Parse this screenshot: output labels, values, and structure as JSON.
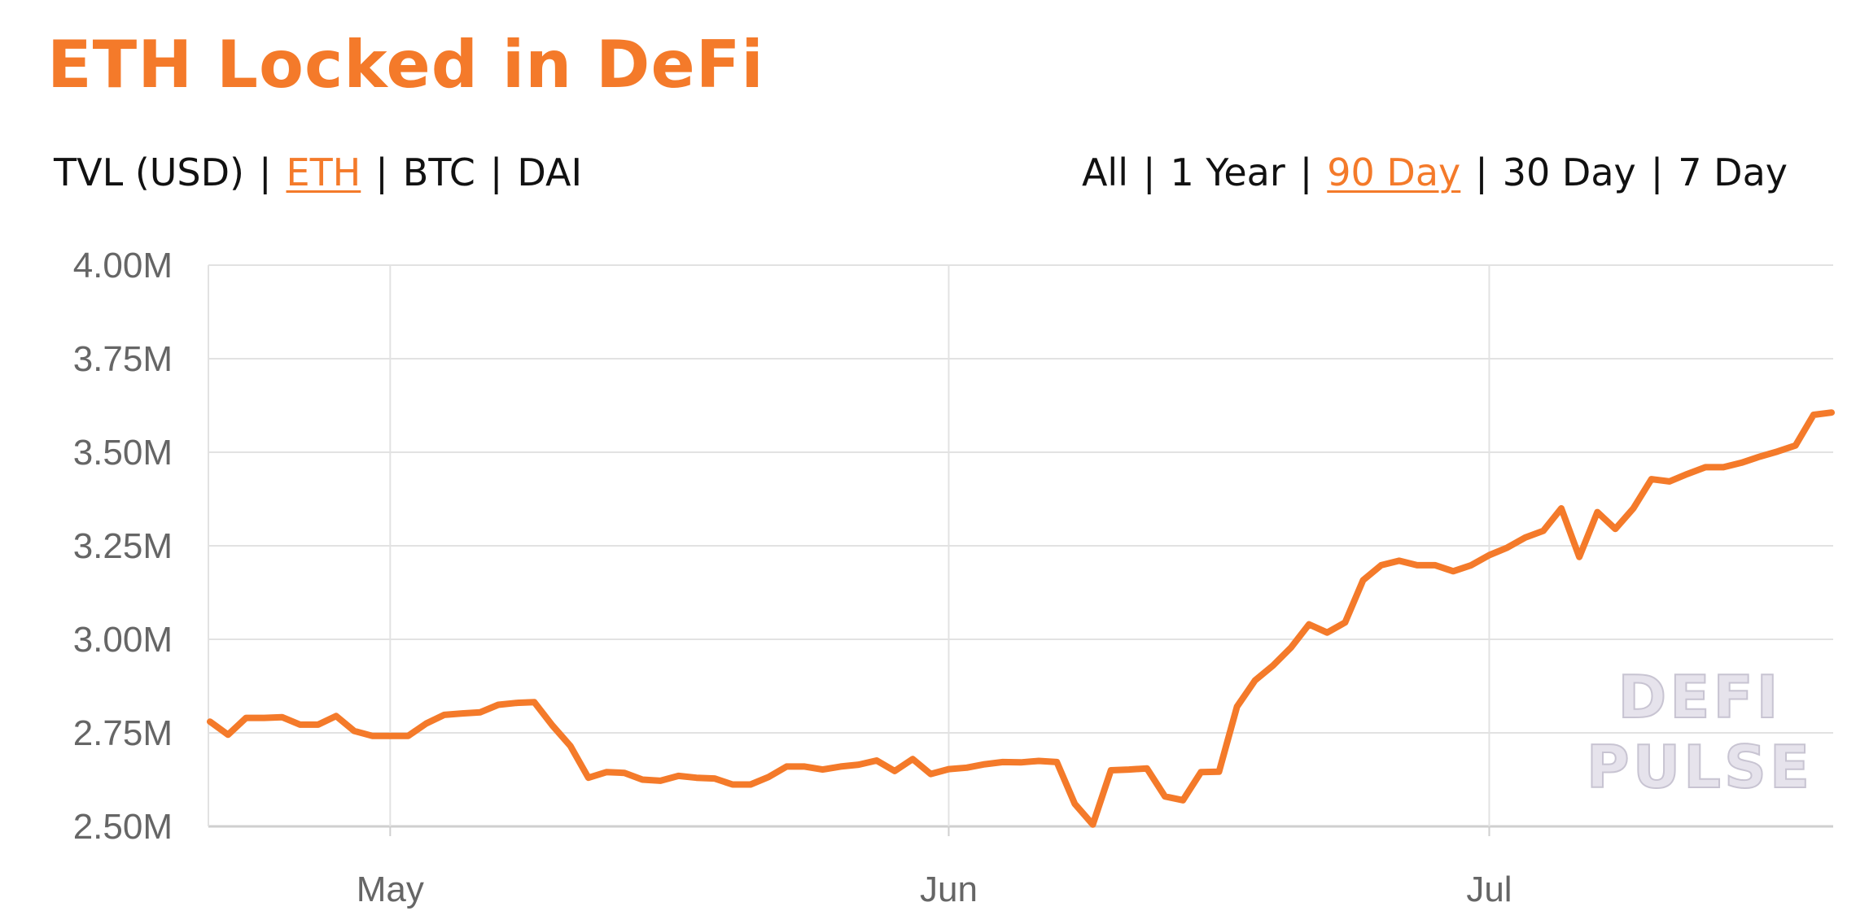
{
  "colors": {
    "accent": "#f47a2a",
    "text": "#111111",
    "grid": "#e2e2e2",
    "axis_line": "#cfcfcf",
    "tick_text": "#666666"
  },
  "header": {
    "title": "ETH Locked in DeFi"
  },
  "unit_nav": {
    "items": [
      {
        "label": "TVL (USD)",
        "active": false
      },
      {
        "label": "ETH",
        "active": true
      },
      {
        "label": "BTC",
        "active": false
      },
      {
        "label": "DAI",
        "active": false
      }
    ],
    "separator": "|"
  },
  "range_nav": {
    "items": [
      {
        "label": "All",
        "active": false
      },
      {
        "label": "1 Year",
        "active": false
      },
      {
        "label": "90 Day",
        "active": true
      },
      {
        "label": "30 Day",
        "active": false
      },
      {
        "label": "7 Day",
        "active": false
      }
    ],
    "separator": "|"
  },
  "watermark": {
    "line1": "DEFI",
    "line2": "PULSE"
  },
  "chart_data": {
    "type": "line",
    "title": "ETH Locked in DeFi",
    "xlabel": "",
    "ylabel": "",
    "ylim": [
      2500000,
      4000000
    ],
    "xlim": [
      "2020-04-21",
      "2020-07-20"
    ],
    "y_ticks": [
      {
        "value": 2500000,
        "label": "2.50M"
      },
      {
        "value": 2750000,
        "label": "2.75M"
      },
      {
        "value": 3000000,
        "label": "3.00M"
      },
      {
        "value": 3250000,
        "label": "3.25M"
      },
      {
        "value": 3500000,
        "label": "3.50M"
      },
      {
        "value": 3750000,
        "label": "3.75M"
      },
      {
        "value": 4000000,
        "label": "4.00M"
      }
    ],
    "x_ticks": [
      {
        "value": "2020-05-01",
        "label": "May"
      },
      {
        "value": "2020-06-01",
        "label": "Jun"
      },
      {
        "value": "2020-07-01",
        "label": "Jul"
      }
    ],
    "grid": true,
    "series": [
      {
        "x": [
          "2020-04-21",
          "2020-04-22",
          "2020-04-23",
          "2020-04-24",
          "2020-04-25",
          "2020-04-26",
          "2020-04-27",
          "2020-04-28",
          "2020-04-29",
          "2020-04-30",
          "2020-05-01",
          "2020-05-02",
          "2020-05-03",
          "2020-05-04",
          "2020-05-05",
          "2020-05-06",
          "2020-05-07",
          "2020-05-08",
          "2020-05-09",
          "2020-05-10",
          "2020-05-11",
          "2020-05-12",
          "2020-05-13",
          "2020-05-14",
          "2020-05-15",
          "2020-05-16",
          "2020-05-17",
          "2020-05-18",
          "2020-05-19",
          "2020-05-20",
          "2020-05-21",
          "2020-05-22",
          "2020-05-23",
          "2020-05-24",
          "2020-05-25",
          "2020-05-26",
          "2020-05-27",
          "2020-05-28",
          "2020-05-29",
          "2020-05-30",
          "2020-05-31",
          "2020-06-01",
          "2020-06-02",
          "2020-06-03",
          "2020-06-04",
          "2020-06-05",
          "2020-06-06",
          "2020-06-07",
          "2020-06-08",
          "2020-06-09",
          "2020-06-10",
          "2020-06-11",
          "2020-06-12",
          "2020-06-13",
          "2020-06-14",
          "2020-06-15",
          "2020-06-16",
          "2020-06-17",
          "2020-06-18",
          "2020-06-19",
          "2020-06-20",
          "2020-06-21",
          "2020-06-22",
          "2020-06-23",
          "2020-06-24",
          "2020-06-25",
          "2020-06-26",
          "2020-06-27",
          "2020-06-28",
          "2020-06-29",
          "2020-06-30",
          "2020-07-01",
          "2020-07-02",
          "2020-07-03",
          "2020-07-04",
          "2020-07-05",
          "2020-07-06",
          "2020-07-07",
          "2020-07-08",
          "2020-07-09",
          "2020-07-10",
          "2020-07-11",
          "2020-07-12",
          "2020-07-13",
          "2020-07-14",
          "2020-07-15",
          "2020-07-16",
          "2020-07-17",
          "2020-07-18",
          "2020-07-19",
          "2020-07-20"
        ],
        "y": [
          2780000,
          2745000,
          2790000,
          2790000,
          2792000,
          2772000,
          2772000,
          2795000,
          2755000,
          2742000,
          2742000,
          2742000,
          2775000,
          2798000,
          2802000,
          2805000,
          2825000,
          2830000,
          2832000,
          2770000,
          2715000,
          2630000,
          2645000,
          2643000,
          2625000,
          2622000,
          2635000,
          2630000,
          2628000,
          2612000,
          2612000,
          2632000,
          2660000,
          2660000,
          2652000,
          2660000,
          2665000,
          2676000,
          2648000,
          2680000,
          2640000,
          2653000,
          2657000,
          2666000,
          2672000,
          2671000,
          2675000,
          2672000,
          2560000,
          2505000,
          2650000,
          2652000,
          2655000,
          2580000,
          2570000,
          2645000,
          2646000,
          2820000,
          2890000,
          2930000,
          2978000,
          3040000,
          3018000,
          3045000,
          3158000,
          3198000,
          3210000,
          3198000,
          3198000,
          3182000,
          3198000,
          3225000,
          3245000,
          3272000,
          3290000,
          3350000,
          3220000,
          3340000,
          3295000,
          3350000,
          3428000,
          3422000,
          3442000,
          3460000,
          3460000,
          3472000,
          3488000,
          3502000,
          3518000,
          3600000,
          3606000
        ]
      }
    ]
  }
}
